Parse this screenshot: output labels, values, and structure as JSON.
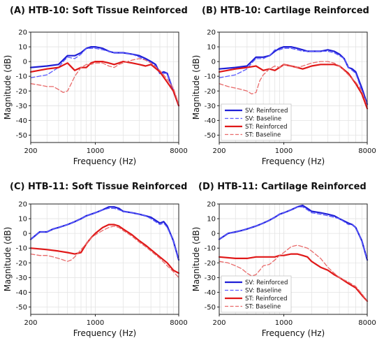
{
  "chart_data": [
    {
      "type": "line",
      "title": "(A) HTB-10: Soft Tissue Reinforced",
      "xlabel": "Frequency (Hz)",
      "ylabel": "Magnitude (dB)",
      "xscale": "log",
      "xlim": [
        200,
        8000
      ],
      "ylim": [
        -55,
        20
      ],
      "xticks": [
        200,
        1000,
        8000
      ],
      "yticks": [
        -50,
        -40,
        -30,
        -20,
        -10,
        0,
        10,
        20
      ],
      "grid": true,
      "legend": false,
      "series": [
        {
          "name": "SV: Reinforced",
          "color": "#1f1fd6",
          "style": "solid",
          "x": [
            200,
            300,
            400,
            500,
            600,
            700,
            800,
            900,
            1000,
            1200,
            1400,
            1600,
            1800,
            2000,
            2500,
            3000,
            3500,
            4000,
            4500,
            5000,
            5500,
            6000,
            7000,
            8000
          ],
          "y": [
            -4,
            -3,
            -2,
            4,
            4,
            6,
            9,
            10,
            10,
            9,
            7,
            6,
            6,
            6,
            5,
            4,
            2,
            0,
            -2,
            -8,
            -7,
            -8,
            -20,
            -30
          ]
        },
        {
          "name": "SV: Baseline",
          "color": "#5a5aff",
          "style": "dashed",
          "x": [
            200,
            300,
            400,
            450,
            500,
            600,
            700,
            800,
            900,
            1000,
            1200,
            1400,
            1600,
            1800,
            2000,
            2500,
            3000,
            3500,
            4000,
            4500,
            5000,
            5500,
            6000,
            7000,
            8000
          ],
          "y": [
            -11,
            -9,
            -4,
            0,
            3,
            2,
            5,
            9,
            9,
            9,
            8,
            7,
            6,
            6,
            6,
            5,
            3,
            1,
            -1,
            -3,
            -8,
            -8,
            -8,
            -20,
            -30
          ]
        },
        {
          "name": "ST: Reinforced",
          "color": "#e01818",
          "style": "solid",
          "x": [
            200,
            300,
            400,
            500,
            600,
            700,
            800,
            900,
            1000,
            1200,
            1400,
            1600,
            1800,
            2000,
            2500,
            3000,
            3500,
            4000,
            5000,
            6000,
            7000,
            8000
          ],
          "y": [
            -7,
            -5,
            -4,
            -1,
            -6,
            -4,
            -4,
            -1,
            0,
            0,
            -1,
            -2,
            -1,
            0,
            -1,
            -2,
            -3,
            -2,
            -7,
            -14,
            -20,
            -30
          ]
        },
        {
          "name": "ST: Baseline",
          "color": "#e86a6a",
          "style": "dashed",
          "x": [
            200,
            250,
            300,
            350,
            400,
            450,
            500,
            550,
            600,
            700,
            800,
            900,
            1000,
            1200,
            1400,
            1600,
            1800,
            2000,
            2500,
            3000,
            3500,
            4000,
            5000,
            6000,
            7000,
            8000
          ],
          "y": [
            -15,
            -16,
            -17,
            -17,
            -19,
            -21,
            -20,
            -15,
            -10,
            -4,
            -2,
            -2,
            -1,
            -1,
            -3,
            -4,
            -2,
            -1,
            1,
            2,
            1,
            -1,
            -6,
            -12,
            -18,
            -29
          ]
        }
      ]
    },
    {
      "type": "line",
      "title": "(B) HTB-10: Cartilage Reinforced",
      "xlabel": "Frequency (Hz)",
      "ylabel": "Magnitude (dB)",
      "xscale": "log",
      "xlim": [
        200,
        8000
      ],
      "ylim": [
        -55,
        20
      ],
      "xticks": [
        200,
        1000,
        8000
      ],
      "yticks": [
        -50,
        -40,
        -30,
        -20,
        -10,
        0,
        10,
        20
      ],
      "grid": true,
      "legend": true,
      "legend_position": "lower-left",
      "series": [
        {
          "name": "SV: Reinforced",
          "color": "#1f1fd6",
          "style": "solid",
          "x": [
            200,
            300,
            400,
            500,
            600,
            700,
            800,
            900,
            1000,
            1200,
            1400,
            1600,
            1800,
            2000,
            2500,
            3000,
            3500,
            4000,
            4500,
            5000,
            5500,
            6000,
            7000,
            8000
          ],
          "y": [
            -5,
            -4,
            -3,
            3,
            3,
            4,
            7,
            9,
            10,
            10,
            9,
            8,
            7,
            7,
            7,
            8,
            7,
            5,
            2,
            -4,
            -5,
            -7,
            -18,
            -29
          ]
        },
        {
          "name": "SV: Baseline",
          "color": "#5a5aff",
          "style": "dashed",
          "x": [
            200,
            300,
            400,
            450,
            500,
            600,
            700,
            800,
            900,
            1000,
            1200,
            1400,
            1600,
            1800,
            2000,
            2500,
            3000,
            3500,
            4000,
            4500,
            5000,
            5500,
            6000,
            7000,
            8000
          ],
          "y": [
            -11,
            -9,
            -5,
            -1,
            2,
            2,
            4,
            8,
            8,
            9,
            9,
            8,
            7,
            7,
            7,
            7,
            7,
            6,
            4,
            2,
            -4,
            -6,
            -8,
            -20,
            -30
          ]
        },
        {
          "name": "ST: Reinforced",
          "color": "#e01818",
          "style": "solid",
          "x": [
            200,
            300,
            400,
            500,
            600,
            700,
            800,
            900,
            1000,
            1200,
            1400,
            1600,
            1800,
            2000,
            2500,
            3000,
            3500,
            4000,
            5000,
            6000,
            7000,
            8000
          ],
          "y": [
            -7,
            -5,
            -4,
            -3,
            -6,
            -5,
            -6,
            -4,
            -2,
            -3,
            -4,
            -5,
            -4,
            -3,
            -2,
            -2,
            -2,
            -3,
            -8,
            -15,
            -22,
            -32
          ]
        },
        {
          "name": "ST: Baseline",
          "color": "#e86a6a",
          "style": "dashed",
          "x": [
            200,
            250,
            300,
            350,
            400,
            450,
            500,
            550,
            600,
            700,
            800,
            900,
            1000,
            1200,
            1400,
            1600,
            1800,
            2000,
            2500,
            3000,
            3500,
            4000,
            5000,
            6000,
            7000,
            8000
          ],
          "y": [
            -15,
            -17,
            -18,
            -19,
            -20,
            -22,
            -21,
            -13,
            -9,
            -5,
            -3,
            -4,
            -2,
            -3,
            -4,
            -3,
            -2,
            -1,
            0,
            0,
            -1,
            -3,
            -9,
            -14,
            -20,
            -30
          ]
        }
      ]
    },
    {
      "type": "line",
      "title": "(C) HTB-11: Soft Tissue Reinforced",
      "xlabel": "Frequency (Hz)",
      "ylabel": "Magnitude (dB)",
      "xscale": "log",
      "xlim": [
        200,
        8000
      ],
      "ylim": [
        -55,
        20
      ],
      "xticks": [
        200,
        1000,
        8000
      ],
      "yticks": [
        -50,
        -40,
        -30,
        -20,
        -10,
        0,
        10,
        20
      ],
      "grid": true,
      "legend": false,
      "series": [
        {
          "name": "SV: Reinforced",
          "color": "#1f1fd6",
          "style": "solid",
          "x": [
            200,
            250,
            300,
            350,
            400,
            500,
            600,
            700,
            800,
            900,
            1000,
            1200,
            1400,
            1600,
            1800,
            2000,
            2500,
            3000,
            3500,
            4000,
            5000,
            5500,
            6000,
            7000,
            8000
          ],
          "y": [
            -4,
            1,
            1,
            3,
            4,
            6,
            8,
            10,
            12,
            13,
            14,
            16,
            18,
            18,
            17,
            15,
            14,
            13,
            12,
            11,
            7,
            8,
            5,
            -5,
            -18
          ]
        },
        {
          "name": "SV: Baseline",
          "color": "#5a5aff",
          "style": "dashed",
          "x": [
            200,
            250,
            300,
            350,
            400,
            500,
            600,
            700,
            800,
            900,
            1000,
            1200,
            1400,
            1600,
            1800,
            2000,
            2500,
            3000,
            3500,
            4000,
            5000,
            5500,
            6000,
            7000,
            8000
          ],
          "y": [
            -4,
            1,
            1,
            3,
            4,
            6,
            8,
            10,
            12,
            13,
            14,
            16,
            17,
            17,
            16,
            15,
            14,
            13,
            12,
            10,
            6,
            7,
            4,
            -5,
            -18
          ]
        },
        {
          "name": "ST: Reinforced",
          "color": "#e01818",
          "style": "solid",
          "x": [
            200,
            300,
            400,
            500,
            600,
            700,
            800,
            900,
            1000,
            1200,
            1400,
            1600,
            1800,
            2000,
            2500,
            3000,
            3500,
            4000,
            5000,
            6000,
            7000,
            8000
          ],
          "y": [
            -10,
            -11,
            -12,
            -13,
            -14,
            -13,
            -7,
            -3,
            0,
            4,
            6,
            6,
            5,
            3,
            -1,
            -5,
            -8,
            -11,
            -16,
            -20,
            -25,
            -27
          ]
        },
        {
          "name": "ST: Baseline",
          "color": "#e86a6a",
          "style": "dashed",
          "x": [
            200,
            250,
            300,
            350,
            400,
            450,
            500,
            550,
            600,
            700,
            800,
            900,
            1000,
            1200,
            1400,
            1600,
            1800,
            2000,
            2500,
            3000,
            3500,
            4000,
            5000,
            6000,
            7000,
            8000
          ],
          "y": [
            -14,
            -15,
            -15,
            -16,
            -17,
            -18,
            -19,
            -18,
            -16,
            -11,
            -7,
            -3,
            -1,
            2,
            4,
            5,
            4,
            2,
            -2,
            -6,
            -9,
            -12,
            -17,
            -22,
            -26,
            -30
          ]
        }
      ]
    },
    {
      "type": "line",
      "title": "(D) HTB-11: Cartilage Reinforced",
      "xlabel": "Frequency (Hz)",
      "ylabel": "Magnitude (dB)",
      "xscale": "log",
      "xlim": [
        200,
        8000
      ],
      "ylim": [
        -55,
        20
      ],
      "xticks": [
        200,
        1000,
        8000
      ],
      "yticks": [
        -50,
        -40,
        -30,
        -20,
        -10,
        0,
        10,
        20
      ],
      "grid": true,
      "legend": true,
      "legend_position": "lower-left",
      "series": [
        {
          "name": "SV: Reinforced",
          "color": "#1f1fd6",
          "style": "solid",
          "x": [
            200,
            250,
            300,
            350,
            400,
            500,
            600,
            700,
            800,
            900,
            1000,
            1200,
            1400,
            1600,
            1800,
            2000,
            2500,
            3000,
            3500,
            4000,
            5000,
            5500,
            6000,
            7000,
            8000
          ],
          "y": [
            -4,
            0,
            1,
            2,
            3,
            5,
            7,
            9,
            11,
            13,
            14,
            16,
            18,
            19,
            17,
            15,
            14,
            13,
            12,
            10,
            7,
            6,
            4,
            -5,
            -18
          ]
        },
        {
          "name": "SV: Baseline",
          "color": "#5a5aff",
          "style": "dashed",
          "x": [
            200,
            250,
            300,
            350,
            400,
            500,
            600,
            700,
            800,
            900,
            1000,
            1200,
            1400,
            1600,
            1800,
            2000,
            2500,
            3000,
            3500,
            4000,
            5000,
            5500,
            6000,
            7000,
            8000
          ],
          "y": [
            -4,
            0,
            1,
            2,
            3,
            5,
            7,
            9,
            11,
            13,
            14,
            16,
            18,
            18,
            16,
            14,
            13,
            12,
            11,
            10,
            6,
            6,
            4,
            -5,
            -18
          ]
        },
        {
          "name": "ST: Reinforced",
          "color": "#e01818",
          "style": "solid",
          "x": [
            200,
            300,
            400,
            500,
            600,
            700,
            800,
            900,
            1000,
            1200,
            1400,
            1600,
            1800,
            2000,
            2500,
            3000,
            3500,
            4000,
            5000,
            6000,
            7000,
            8000
          ],
          "y": [
            -16,
            -17,
            -17,
            -16,
            -16,
            -16,
            -16,
            -15,
            -15,
            -14,
            -14,
            -15,
            -16,
            -19,
            -23,
            -25,
            -28,
            -30,
            -34,
            -37,
            -42,
            -46
          ]
        },
        {
          "name": "ST: Baseline",
          "color": "#e86a6a",
          "style": "dashed",
          "x": [
            200,
            250,
            300,
            350,
            400,
            450,
            500,
            550,
            600,
            700,
            800,
            900,
            1000,
            1200,
            1400,
            1600,
            1800,
            2000,
            2500,
            3000,
            3500,
            4000,
            5000,
            6000,
            7000,
            8000
          ],
          "y": [
            -19,
            -20,
            -22,
            -24,
            -27,
            -29,
            -28,
            -25,
            -22,
            -21,
            -18,
            -15,
            -13,
            -9,
            -8,
            -9,
            -10,
            -12,
            -17,
            -23,
            -27,
            -30,
            -33,
            -36,
            -41,
            -46
          ]
        }
      ]
    }
  ]
}
